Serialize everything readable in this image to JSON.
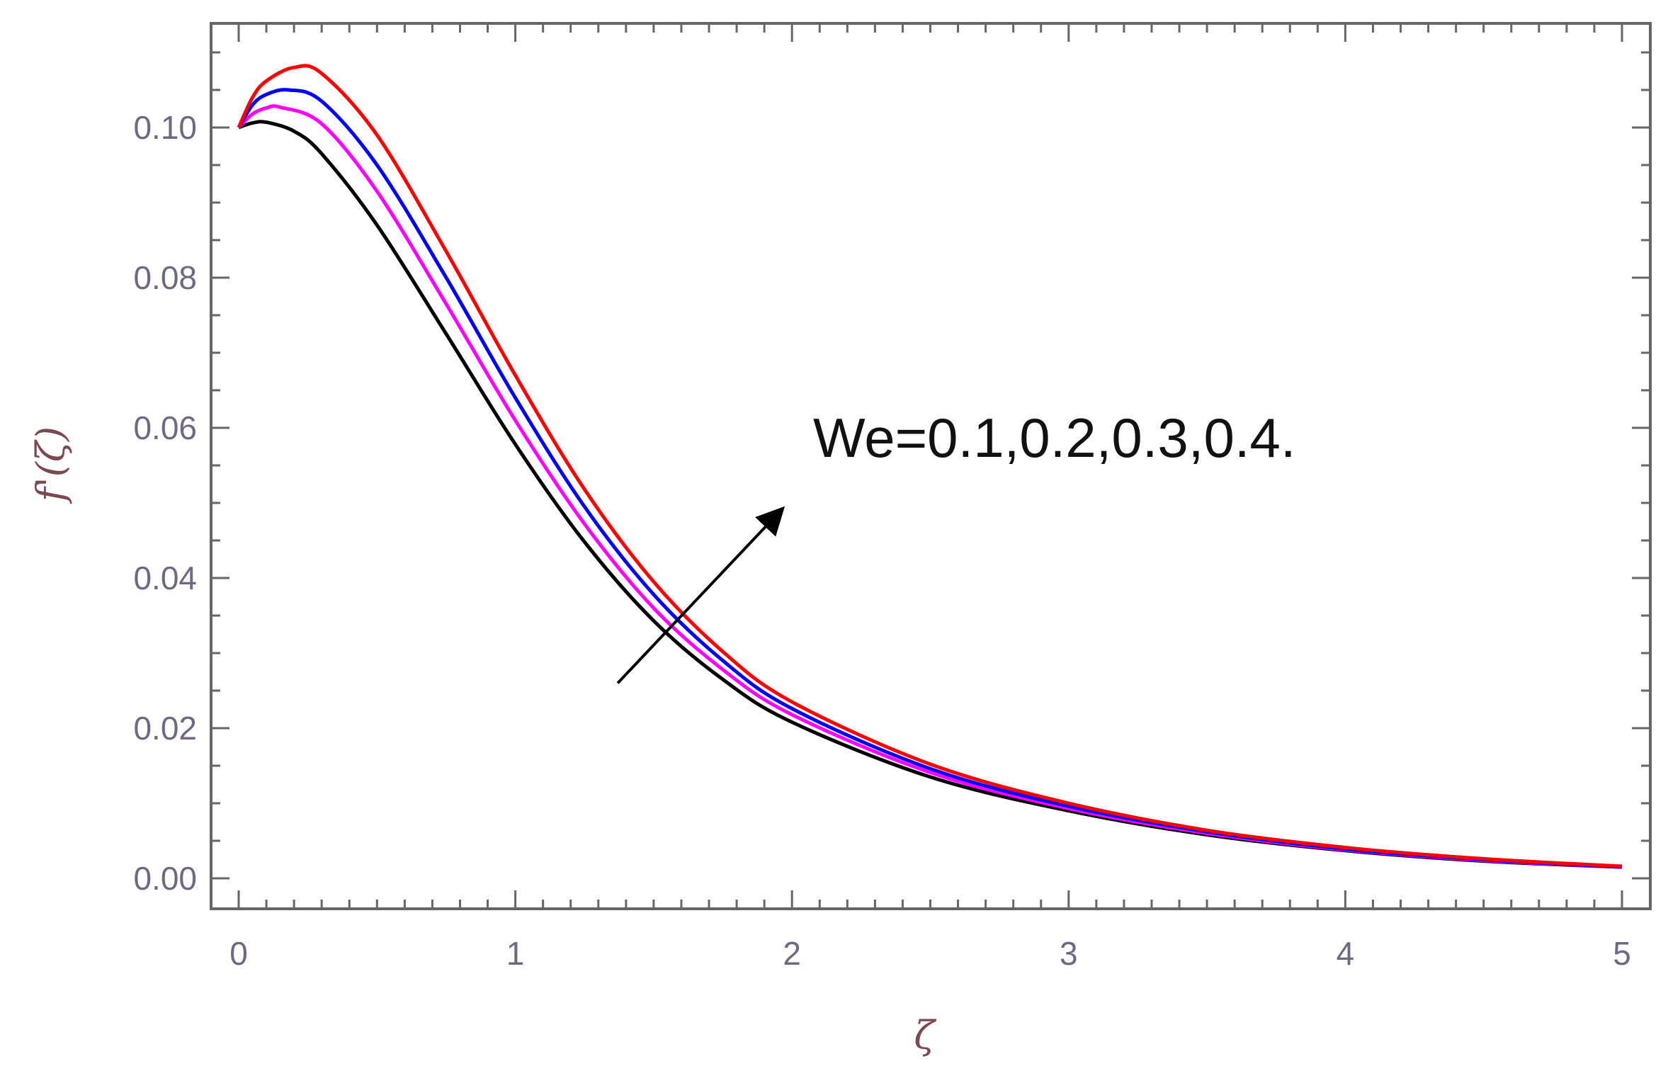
{
  "chart_data": {
    "type": "line",
    "title": "",
    "xlabel": "ζ",
    "ylabel": "f'(ζ)",
    "xlim": [
      0,
      5
    ],
    "ylim": [
      0,
      0.11
    ],
    "x_ticks": [
      0,
      1,
      2,
      3,
      4,
      5
    ],
    "x_tick_labels": [
      "0",
      "1",
      "2",
      "3",
      "4",
      "5"
    ],
    "y_ticks": [
      0,
      0.02,
      0.04,
      0.06,
      0.08,
      0.1
    ],
    "y_tick_labels": [
      "0.00",
      "0.02",
      "0.04",
      "0.06",
      "0.08",
      "0.10"
    ],
    "grid": false,
    "legend": "none",
    "annotation": {
      "text": "We=0.1,0.2,0.3,0.4.",
      "arrow": {
        "from": [
          1.37,
          0.026
        ],
        "to": [
          1.96,
          0.049
        ],
        "color": "#000000"
      }
    },
    "series": [
      {
        "color": "#000000",
        "x": [
          0,
          0.05,
          0.1,
          0.2,
          0.3,
          0.5,
          0.75,
          1.0,
          1.25,
          1.5,
          1.75,
          2.0,
          2.5,
          3.0,
          3.5,
          4.0,
          4.5,
          5.0
        ],
        "y": [
          0.1,
          0.1006,
          0.1007,
          0.0995,
          0.0965,
          0.087,
          0.0725,
          0.0578,
          0.0448,
          0.0343,
          0.0265,
          0.0208,
          0.0135,
          0.009,
          0.0058,
          0.0037,
          0.0023,
          0.0015
        ]
      },
      {
        "color": "#ff00ff",
        "x": [
          0,
          0.05,
          0.1,
          0.15,
          0.3,
          0.5,
          0.75,
          1.0,
          1.25,
          1.5,
          1.75,
          2.0,
          2.5,
          3.0,
          3.5,
          4.0,
          4.5,
          5.0
        ],
        "y": [
          0.1,
          0.1018,
          0.1026,
          0.1027,
          0.1005,
          0.0915,
          0.0765,
          0.061,
          0.0472,
          0.036,
          0.0278,
          0.0218,
          0.0141,
          0.0093,
          0.006,
          0.0038,
          0.0024,
          0.0015
        ]
      },
      {
        "color": "#0000ff",
        "x": [
          0,
          0.05,
          0.1,
          0.18,
          0.3,
          0.5,
          0.75,
          1.0,
          1.25,
          1.5,
          1.75,
          2.0,
          2.5,
          3.0,
          3.5,
          4.0,
          4.5,
          5.0
        ],
        "y": [
          0.1,
          0.103,
          0.1044,
          0.105,
          0.1035,
          0.095,
          0.08,
          0.064,
          0.0495,
          0.0378,
          0.029,
          0.0226,
          0.0146,
          0.0096,
          0.0062,
          0.0039,
          0.0025,
          0.0015
        ]
      },
      {
        "color": "#ff0000",
        "x": [
          0,
          0.05,
          0.1,
          0.2,
          0.3,
          0.5,
          0.75,
          1.0,
          1.25,
          1.5,
          1.75,
          2.0,
          2.5,
          3.0,
          3.5,
          4.0,
          4.5,
          5.0
        ],
        "y": [
          0.1,
          0.104,
          0.1062,
          0.108,
          0.1072,
          0.099,
          0.0835,
          0.067,
          0.0518,
          0.0395,
          0.0302,
          0.0235,
          0.0152,
          0.01,
          0.0064,
          0.0041,
          0.0026,
          0.0016
        ]
      }
    ]
  }
}
